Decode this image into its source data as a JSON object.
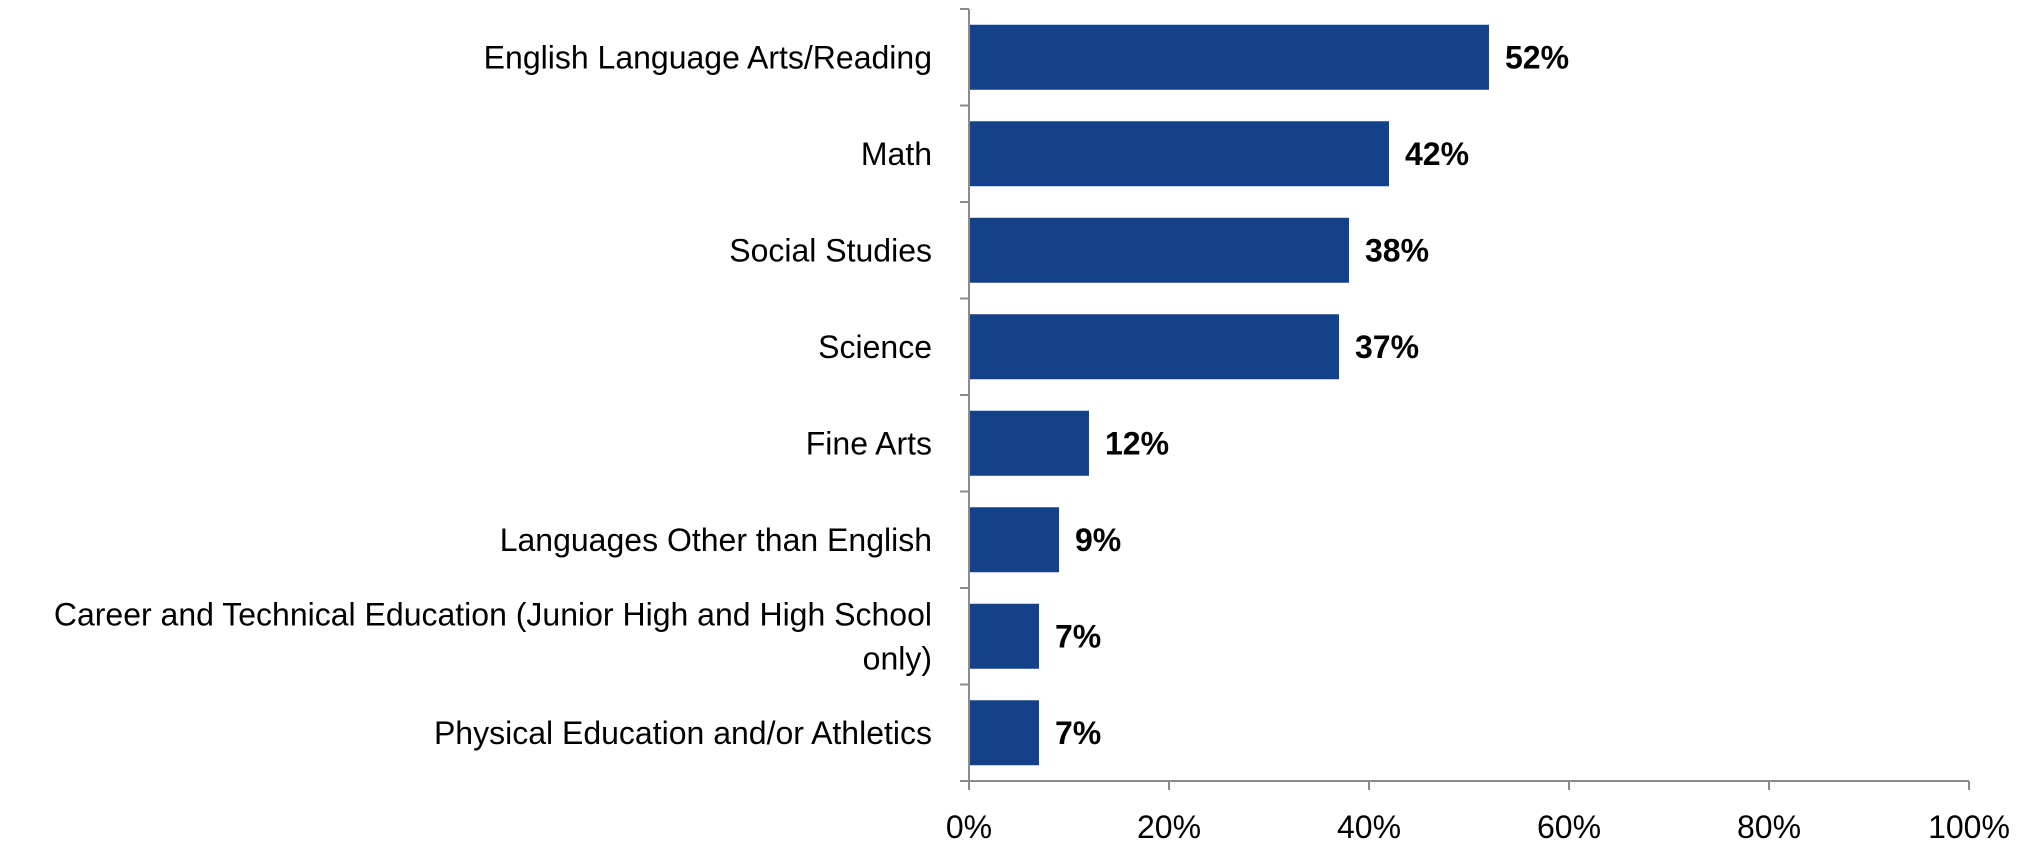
{
  "chart_data": {
    "type": "bar",
    "orientation": "horizontal",
    "categories": [
      "English Language Arts/Reading",
      "Math",
      "Social Studies",
      "Science",
      "Fine Arts",
      "Languages Other than English",
      "Career and Technical Education (Junior High and High School only)",
      "Physical Education and/or Athletics"
    ],
    "category_lines": [
      [
        "English Language Arts/Reading"
      ],
      [
        "Math"
      ],
      [
        "Social Studies"
      ],
      [
        "Science"
      ],
      [
        "Fine Arts"
      ],
      [
        "Languages Other than English"
      ],
      [
        "Career and Technical Education (Junior High and High School",
        "only)"
      ],
      [
        "Physical Education and/or Athletics"
      ]
    ],
    "values": [
      52,
      42,
      38,
      37,
      12,
      9,
      7,
      7
    ],
    "data_labels": [
      "52%",
      "42%",
      "38%",
      "37%",
      "12%",
      "9%",
      "7%",
      "7%"
    ],
    "xlim": [
      0,
      100
    ],
    "x_ticks": [
      0,
      20,
      40,
      60,
      80,
      100
    ],
    "x_tick_labels": [
      "0%",
      "20%",
      "40%",
      "60%",
      "80%",
      "100%"
    ],
    "title": "",
    "xlabel": "",
    "ylabel": "",
    "grid": false,
    "legend": "none",
    "colors": {
      "bar": "#13418A",
      "axis": "#8C8C8C",
      "text": "#000000"
    }
  }
}
